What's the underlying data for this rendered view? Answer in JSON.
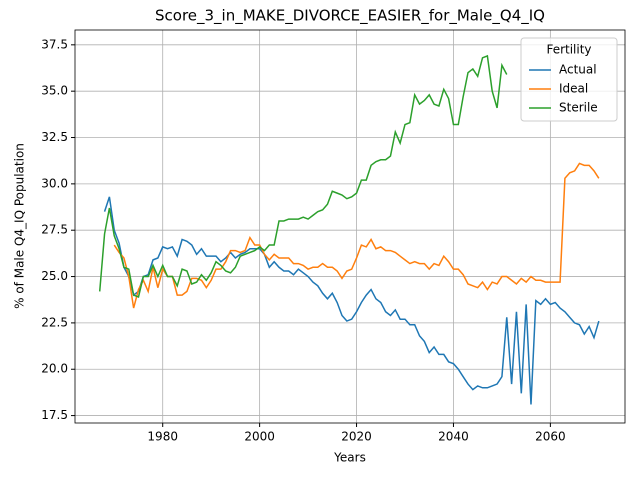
{
  "chart_data": {
    "type": "line",
    "title": "Score_3_in_MAKE_DIVORCE_EASIER_for_Male_Q4_IQ",
    "xlabel": "Years",
    "ylabel": "% of Male Q4_IQ Population",
    "legend_title": "Fertility",
    "legend": "upper right",
    "grid": true,
    "x": [
      1967,
      1968,
      1969,
      1970,
      1971,
      1972,
      1973,
      1974,
      1975,
      1976,
      1977,
      1978,
      1979,
      1980,
      1981,
      1982,
      1983,
      1984,
      1985,
      1986,
      1987,
      1988,
      1989,
      1990,
      1991,
      1992,
      1993,
      1994,
      1995,
      1996,
      1997,
      1998,
      1999,
      2000,
      2001,
      2002,
      2003,
      2004,
      2005,
      2006,
      2007,
      2008,
      2009,
      2010,
      2011,
      2012,
      2013,
      2014,
      2015,
      2016,
      2017,
      2018,
      2019,
      2020,
      2021,
      2022,
      2023,
      2024,
      2025,
      2026,
      2027,
      2028,
      2029,
      2030,
      2031,
      2032,
      2033,
      2034,
      2035,
      2036,
      2037,
      2038,
      2039,
      2040,
      2041,
      2042,
      2043,
      2044,
      2045,
      2046,
      2047,
      2048,
      2049,
      2050,
      2051,
      2052,
      2053,
      2054,
      2055,
      2056,
      2057,
      2058,
      2059,
      2060,
      2061,
      2062,
      2063,
      2064,
      2065,
      2066,
      2067,
      2068,
      2069,
      2070
    ],
    "series": [
      {
        "name": "Actual",
        "color": "#1f77b4",
        "values": [
          null,
          28.5,
          29.3,
          27.5,
          26.8,
          25.5,
          25.0,
          24.0,
          24.2,
          25.0,
          25.1,
          25.9,
          26.0,
          26.6,
          26.5,
          26.6,
          26.1,
          27.0,
          26.9,
          26.7,
          26.2,
          26.5,
          26.1,
          26.1,
          26.1,
          25.8,
          26.0,
          26.3,
          26.0,
          26.2,
          26.3,
          26.5,
          26.5,
          26.5,
          26.2,
          25.5,
          25.8,
          25.5,
          25.3,
          25.3,
          25.1,
          25.4,
          25.2,
          25.0,
          24.7,
          24.5,
          24.1,
          23.8,
          24.1,
          23.6,
          22.9,
          22.6,
          22.7,
          23.1,
          23.6,
          24.0,
          24.3,
          23.8,
          23.6,
          23.1,
          22.9,
          23.2,
          22.7,
          22.7,
          22.4,
          22.4,
          21.8,
          21.5,
          20.9,
          21.2,
          20.8,
          20.8,
          20.4,
          20.3,
          20.0,
          19.6,
          19.2,
          18.9,
          19.1,
          19.0,
          19.0,
          19.1,
          19.2,
          19.6,
          22.8,
          19.2,
          23.1,
          18.7,
          23.5,
          18.1,
          23.7,
          23.5,
          23.8,
          23.5,
          23.6,
          23.3,
          23.1,
          22.8,
          22.5,
          22.4,
          21.9,
          22.3,
          21.7,
          22.6
        ]
      },
      {
        "name": "Ideal",
        "color": "#ff7f0e",
        "values": [
          null,
          null,
          null,
          26.7,
          26.3,
          26.0,
          25.0,
          23.3,
          24.3,
          24.8,
          24.2,
          25.5,
          24.4,
          25.4,
          25.0,
          25.0,
          24.0,
          24.0,
          24.2,
          24.9,
          24.9,
          24.8,
          24.4,
          24.8,
          25.4,
          25.4,
          25.8,
          26.4,
          26.4,
          26.3,
          26.4,
          27.1,
          26.7,
          26.7,
          26.2,
          25.9,
          26.2,
          26.0,
          26.0,
          26.0,
          25.7,
          25.7,
          25.6,
          25.4,
          25.5,
          25.5,
          25.7,
          25.5,
          25.5,
          25.3,
          24.9,
          25.3,
          25.4,
          26.0,
          26.7,
          26.6,
          27.0,
          26.5,
          26.6,
          26.4,
          26.4,
          26.3,
          26.1,
          25.9,
          25.7,
          25.8,
          25.7,
          25.7,
          25.4,
          25.7,
          25.6,
          26.1,
          25.8,
          25.4,
          25.4,
          25.1,
          24.6,
          24.5,
          24.4,
          24.7,
          24.3,
          24.7,
          24.6,
          25.0,
          25.0,
          24.8,
          24.6,
          24.9,
          24.7,
          25.0,
          24.8,
          24.8,
          24.7,
          24.7,
          24.7,
          24.7,
          30.3,
          30.6,
          30.7,
          31.1,
          31.0,
          31.0,
          30.7,
          30.3
        ]
      },
      {
        "name": "Sterile",
        "color": "#2ca02c",
        "values": [
          24.2,
          27.3,
          28.7,
          27.2,
          26.5,
          25.5,
          25.4,
          24.0,
          23.9,
          25.0,
          25.0,
          25.6,
          25.0,
          25.6,
          25.0,
          25.0,
          24.5,
          25.4,
          25.3,
          24.6,
          24.7,
          25.1,
          24.8,
          25.2,
          25.8,
          25.6,
          25.3,
          25.2,
          25.5,
          26.1,
          26.2,
          26.3,
          26.4,
          26.6,
          26.4,
          26.7,
          26.7,
          28.0,
          28.0,
          28.1,
          28.1,
          28.1,
          28.2,
          28.1,
          28.3,
          28.5,
          28.6,
          28.9,
          29.6,
          29.5,
          29.4,
          29.2,
          29.3,
          29.5,
          30.2,
          30.2,
          31.0,
          31.2,
          31.3,
          31.3,
          31.5,
          32.8,
          32.2,
          33.2,
          33.3,
          34.8,
          34.3,
          34.5,
          34.8,
          34.3,
          34.2,
          35.1,
          34.6,
          33.2,
          33.2,
          34.7,
          36.0,
          36.2,
          35.8,
          36.8,
          36.9,
          35.0,
          34.1,
          36.4,
          35.9,
          null,
          null,
          null,
          null,
          null,
          null,
          null,
          null,
          null,
          null,
          null,
          null,
          null,
          null,
          null,
          null,
          null,
          null,
          null
        ]
      }
    ],
    "xlim": [
      1961.9,
      2075.4
    ],
    "xticks": [
      1980,
      2000,
      2020,
      2040,
      2060
    ],
    "ylim": [
      17.1,
      38.3
    ],
    "yticks": [
      17.5,
      {
        "value": 20,
        "label": "20.0"
      },
      22.5,
      {
        "value": 25,
        "label": "25.0"
      },
      27.5,
      {
        "value": 30,
        "label": "30.0"
      },
      32.5,
      {
        "value": 35,
        "label": "35.0"
      },
      37.5
    ]
  }
}
